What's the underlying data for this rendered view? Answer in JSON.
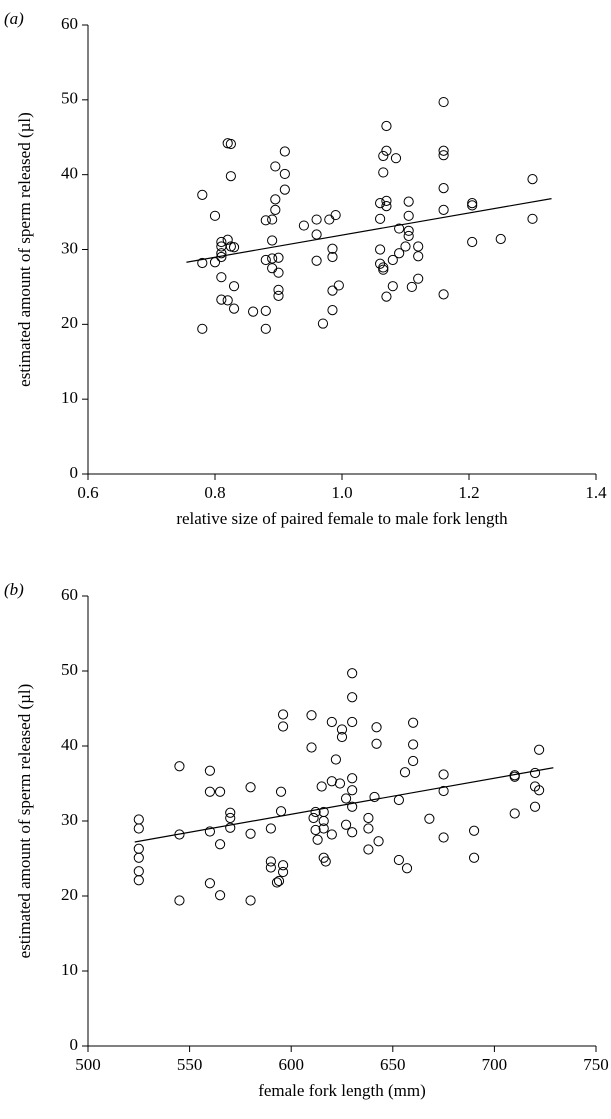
{
  "chart_data": [
    {
      "type": "scatter",
      "label": "(a)",
      "x_label": "relative size of paired female to male fork length",
      "y_label": "estimated amount of sperm released (µl)",
      "color": "#000000",
      "x": [
        0.78,
        0.78,
        0.78,
        0.8,
        0.8,
        0.81,
        0.81,
        0.81,
        0.81,
        0.81,
        0.81,
        0.82,
        0.825,
        0.82,
        0.825,
        0.83,
        0.825,
        0.82,
        0.83,
        0.83,
        0.86,
        0.88,
        0.88,
        0.88,
        0.88,
        0.89,
        0.89,
        0.89,
        0.89,
        0.895,
        0.895,
        0.895,
        0.9,
        0.9,
        0.9,
        0.9,
        0.91,
        0.91,
        0.91,
        0.94,
        0.96,
        0.96,
        0.96,
        0.97,
        0.98,
        0.985,
        0.985,
        0.985,
        0.985,
        0.99,
        0.995,
        1.06,
        1.06,
        1.06,
        1.06,
        1.065,
        1.065,
        1.065,
        1.065,
        1.07,
        1.07,
        1.07,
        1.07,
        1.07,
        1.08,
        1.08,
        1.085,
        1.09,
        1.09,
        1.1,
        1.105,
        1.105,
        1.105,
        1.105,
        1.11,
        1.12,
        1.12,
        1.12,
        1.16,
        1.16,
        1.16,
        1.16,
        1.16,
        1.16,
        1.205,
        1.205,
        1.205,
        1.25,
        1.3,
        1.3
      ],
      "values": [
        37.3,
        28.2,
        19.4,
        34.5,
        28.3,
        31.0,
        30.4,
        29.5,
        29.0,
        26.3,
        23.3,
        44.2,
        44.1,
        31.3,
        30.4,
        30.3,
        39.8,
        23.2,
        25.1,
        22.1,
        21.7,
        19.4,
        21.8,
        28.6,
        33.9,
        34.0,
        28.8,
        31.2,
        27.5,
        36.7,
        41.1,
        35.3,
        26.9,
        28.9,
        24.6,
        23.8,
        43.1,
        40.1,
        38.0,
        33.2,
        34.0,
        32.0,
        28.5,
        20.1,
        34.0,
        30.1,
        29.0,
        24.5,
        21.9,
        34.6,
        25.2,
        36.2,
        34.1,
        30.0,
        28.1,
        27.6,
        27.3,
        42.5,
        40.3,
        46.5,
        43.2,
        36.5,
        35.8,
        23.7,
        25.1,
        28.6,
        42.2,
        29.5,
        32.8,
        30.4,
        36.4,
        34.5,
        32.5,
        31.8,
        25.0,
        30.4,
        29.1,
        26.1,
        49.7,
        43.2,
        42.6,
        38.2,
        35.3,
        24.0,
        36.2,
        35.9,
        31.0,
        31.4,
        39.4,
        34.1
      ],
      "fit_line": {
        "x": [
          0.755,
          1.33
        ],
        "values": [
          28.3,
          36.8
        ]
      },
      "xlim": [
        0.6,
        1.4
      ],
      "xticks": [
        0.6,
        0.8,
        {
          "value": 1,
          "label": "1.0"
        },
        1.2,
        1.4
      ],
      "ylim": [
        0,
        60
      ],
      "yticks": [
        0,
        10,
        20,
        30,
        40,
        50,
        60
      ]
    },
    {
      "type": "scatter",
      "label": "(b)",
      "x_label": "female fork length (mm)",
      "y_label": "estimated amount of sperm released (µl)",
      "color": "#000000",
      "x": [
        525,
        525,
        525,
        525,
        525,
        525,
        545,
        545,
        545,
        560,
        560,
        560,
        560,
        565,
        565,
        565,
        570,
        570,
        570,
        580,
        580,
        580,
        590,
        590,
        590,
        593,
        594,
        595,
        595,
        596,
        596,
        596,
        596,
        610,
        610,
        611,
        612,
        612,
        613,
        615,
        616,
        616,
        616,
        616,
        617,
        620,
        620,
        620,
        622,
        624,
        625,
        625,
        627,
        627,
        630,
        630,
        630,
        630,
        630,
        630,
        630,
        638,
        638,
        638,
        641,
        642,
        642,
        643,
        653,
        653,
        656,
        657,
        660,
        660,
        660,
        668,
        675,
        675,
        675,
        690,
        690,
        710,
        710,
        710,
        720,
        720,
        720,
        722,
        722
      ],
      "values": [
        30.2,
        29.0,
        26.3,
        25.1,
        23.3,
        22.1,
        37.3,
        28.2,
        19.4,
        36.7,
        33.9,
        28.6,
        21.7,
        33.9,
        26.9,
        20.1,
        31.1,
        30.4,
        29.1,
        34.5,
        28.3,
        19.4,
        29.0,
        24.6,
        23.8,
        21.8,
        22.0,
        33.9,
        31.3,
        44.2,
        42.6,
        24.1,
        23.2,
        44.1,
        39.8,
        30.4,
        31.2,
        28.8,
        27.5,
        34.6,
        31.2,
        30.0,
        29.0,
        25.1,
        24.6,
        43.2,
        35.3,
        28.2,
        38.2,
        35.0,
        42.2,
        41.2,
        33.0,
        29.5,
        49.7,
        46.5,
        43.2,
        35.7,
        34.1,
        31.9,
        28.5,
        30.4,
        29.0,
        26.2,
        33.2,
        42.5,
        40.3,
        27.3,
        32.8,
        24.8,
        36.5,
        23.7,
        43.1,
        40.2,
        38.0,
        30.3,
        36.2,
        34.0,
        27.8,
        28.7,
        25.1,
        36.1,
        35.9,
        31.0,
        36.4,
        34.6,
        31.9,
        39.5,
        34.1
      ],
      "fit_line": {
        "x": [
          523,
          729
        ],
        "values": [
          27.2,
          37.1
        ]
      },
      "xlim": [
        500,
        750
      ],
      "xticks": [
        500,
        550,
        600,
        650,
        700,
        750
      ],
      "ylim": [
        0,
        60
      ],
      "yticks": [
        0,
        10,
        20,
        30,
        40,
        50,
        60
      ]
    }
  ]
}
